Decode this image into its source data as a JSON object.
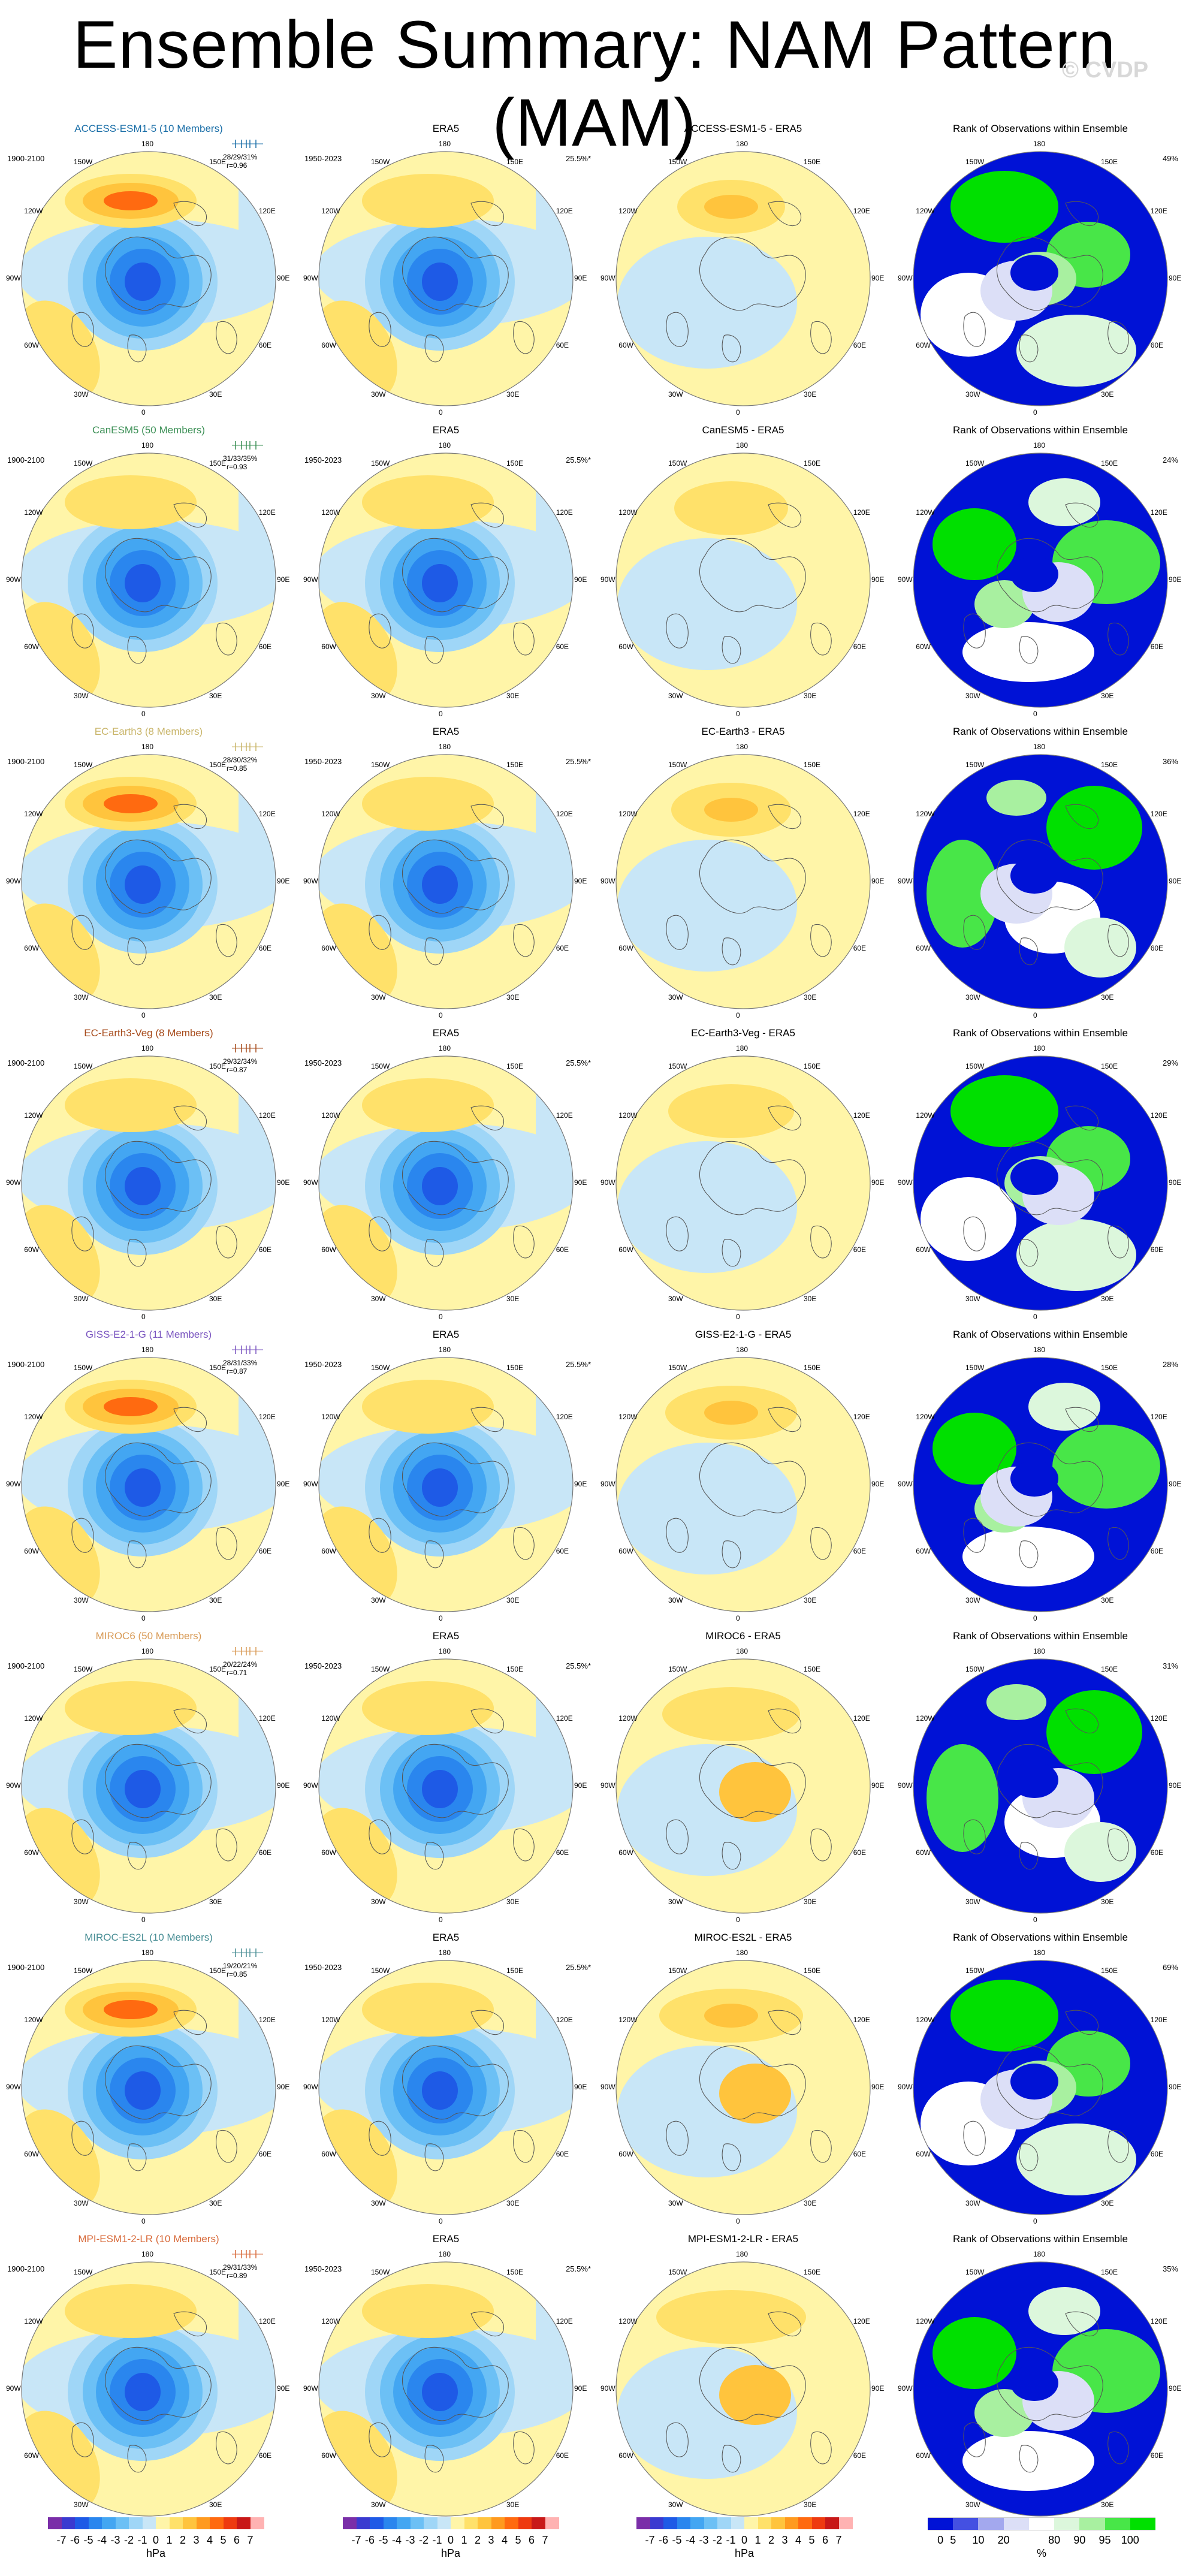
{
  "title": "Ensemble Summary: NAM Pattern (MAM)",
  "watermark": "© CVDP",
  "colorbars": {
    "diff_ticks": [
      "-7",
      "-6",
      "-5",
      "-4",
      "-3",
      "-2",
      "-1",
      "0",
      "1",
      "2",
      "3",
      "4",
      "5",
      "6",
      "7"
    ],
    "diff_unit": "hPa",
    "rank_ticks": [
      "0",
      "5",
      "10",
      "20",
      "80",
      "90",
      "95",
      "100"
    ],
    "rank_unit": "%",
    "diff_colors": [
      "#7a2ea8",
      "#3a3ad0",
      "#1e5ae6",
      "#2a86ee",
      "#43a6f2",
      "#6cc0f5",
      "#9fd6f7",
      "#c8e6f7",
      "#fff5a8",
      "#ffe16a",
      "#ffc43d",
      "#ff9a1f",
      "#ff6a10",
      "#ee3a10",
      "#c81818",
      "#ffb2b2"
    ],
    "rank_colors": [
      "#0012d6",
      "#4450e2",
      "#a3a8ee",
      "#dcdff7",
      "#ffffff",
      "#dcf7dc",
      "#a8f0a0",
      "#48e648",
      "#00e000"
    ]
  },
  "lon_labels": [
    "180",
    "150E",
    "120E",
    "90E",
    "60E",
    "30E",
    "0",
    "30W",
    "60W",
    "90W",
    "120W",
    "150W"
  ],
  "rows": [
    {
      "model": "ACCESS-ESM1-5 (10 Members)",
      "color": "#1b6fa8",
      "period": "1900-2100",
      "stats": "28/29/31%",
      "corr": "r=0.96",
      "era5_period": "1950-2023",
      "pattern": "25.5%*",
      "diff_title": "ACCESS-ESM1-5 - ERA5",
      "rank_title": "Rank of Observations within Ensemble",
      "rank_pct": "49%"
    },
    {
      "model": "CanESM5 (50 Members)",
      "color": "#3b8f55",
      "period": "1900-2100",
      "stats": "31/33/35%",
      "corr": "r=0.93",
      "era5_period": "1950-2023",
      "pattern": "25.5%*",
      "diff_title": "CanESM5 - ERA5",
      "rank_title": "Rank of Observations within Ensemble",
      "rank_pct": "24%"
    },
    {
      "model": "EC-Earth3 (8 Members)",
      "color": "#c9b56a",
      "period": "1900-2100",
      "stats": "28/30/32%",
      "corr": "r=0.85",
      "era5_period": "1950-2023",
      "pattern": "25.5%*",
      "diff_title": "EC-Earth3 - ERA5",
      "rank_title": "Rank of Observations within Ensemble",
      "rank_pct": "36%"
    },
    {
      "model": "EC-Earth3-Veg (8 Members)",
      "color": "#a64a1a",
      "period": "1900-2100",
      "stats": "29/32/34%",
      "corr": "r=0.87",
      "era5_period": "1950-2023",
      "pattern": "25.5%*",
      "diff_title": "EC-Earth3-Veg - ERA5",
      "rank_title": "Rank of Observations within Ensemble",
      "rank_pct": "29%"
    },
    {
      "model": "GISS-E2-1-G (11 Members)",
      "color": "#7a55c0",
      "period": "1900-2100",
      "stats": "28/31/33%",
      "corr": "r=0.87",
      "era5_period": "1950-2023",
      "pattern": "25.5%*",
      "diff_title": "GISS-E2-1-G - ERA5",
      "rank_title": "Rank of Observations within Ensemble",
      "rank_pct": "28%"
    },
    {
      "model": "MIROC6 (50 Members)",
      "color": "#d89a55",
      "period": "1900-2100",
      "stats": "20/22/24%",
      "corr": "r=0.71",
      "era5_period": "1950-2023",
      "pattern": "25.5%*",
      "diff_title": "MIROC6 - ERA5",
      "rank_title": "Rank of Observations within Ensemble",
      "rank_pct": "31%"
    },
    {
      "model": "MIROC-ES2L (10 Members)",
      "color": "#4a8f96",
      "period": "1900-2100",
      "stats": "19/20/21%",
      "corr": "r=0.85",
      "era5_period": "1950-2023",
      "pattern": "25.5%*",
      "diff_title": "MIROC-ES2L - ERA5",
      "rank_title": "Rank of Observations within Ensemble",
      "rank_pct": "69%"
    },
    {
      "model": "MPI-ESM1-2-LR (10 Members)",
      "color": "#d86a3a",
      "period": "1900-2100",
      "stats": "29/31/33%",
      "corr": "r=0.89",
      "era5_period": "1950-2023",
      "pattern": "25.5%*",
      "diff_title": "MPI-ESM1-2-LR - ERA5",
      "rank_title": "Rank of Observations within Ensemble",
      "rank_pct": "35%"
    }
  ],
  "era5_title": "ERA5"
}
